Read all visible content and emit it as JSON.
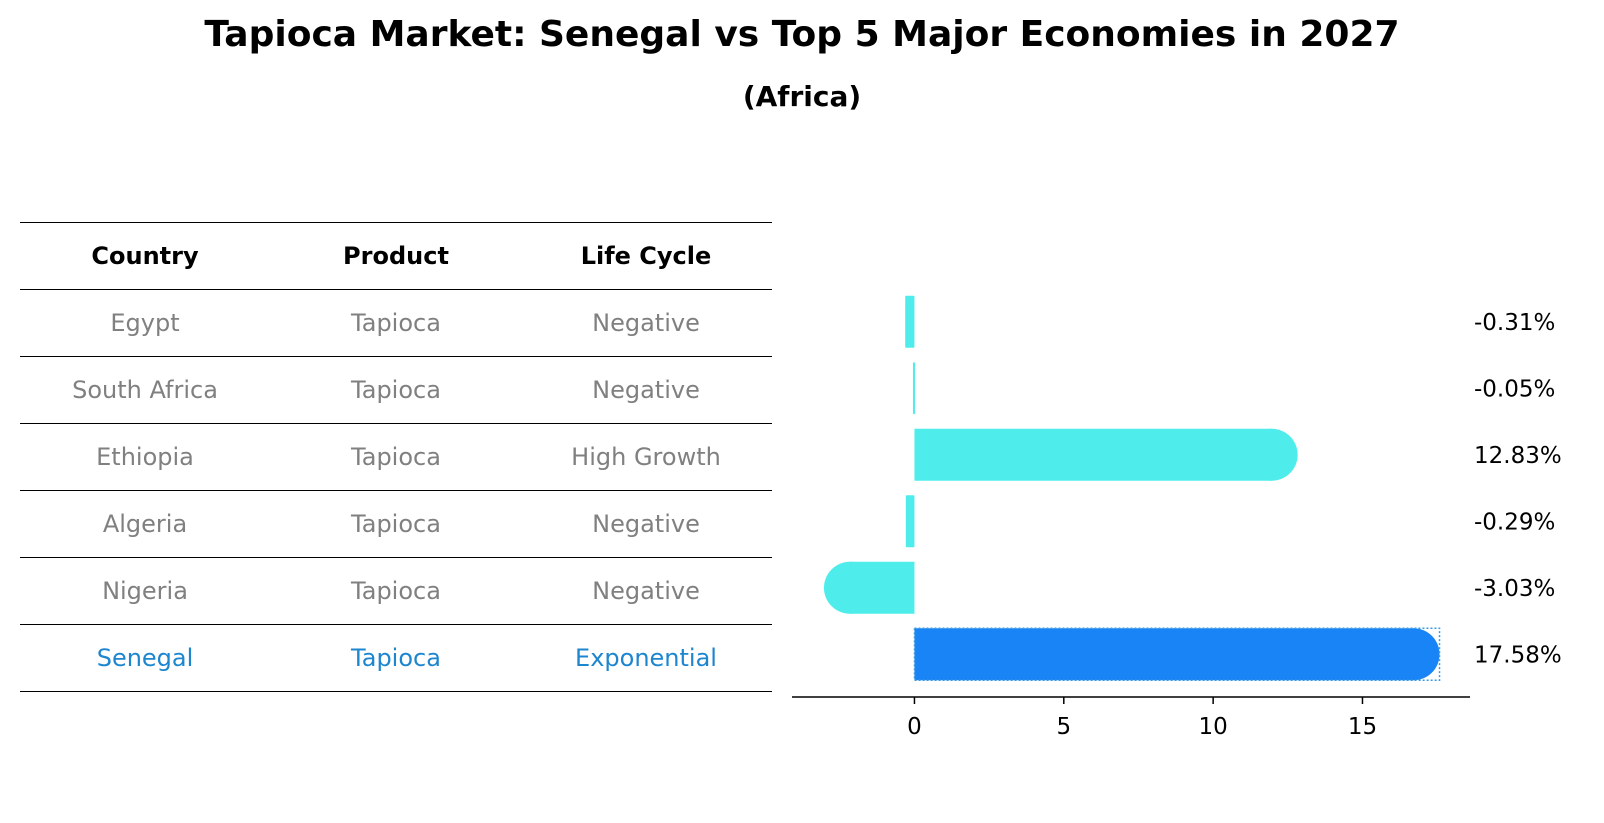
{
  "title": "Tapioca Market: Senegal vs Top 5 Major Economies in 2027",
  "subtitle": "(Africa)",
  "table": {
    "headers": [
      "Country",
      "Product",
      "Life Cycle"
    ],
    "rows": [
      [
        "Egypt",
        "Tapioca",
        "Negative"
      ],
      [
        "South Africa",
        "Tapioca",
        "Negative"
      ],
      [
        "Ethiopia",
        "Tapioca",
        "High Growth"
      ],
      [
        "Algeria",
        "Tapioca",
        "Negative"
      ],
      [
        "Nigeria",
        "Tapioca",
        "Negative"
      ],
      [
        "Senegal",
        "Tapioca",
        "Exponential"
      ]
    ],
    "highlight_row": 5
  },
  "chart_data": {
    "type": "bar",
    "orientation": "horizontal",
    "categories": [
      "Egypt",
      "South Africa",
      "Ethiopia",
      "Algeria",
      "Nigeria",
      "Senegal"
    ],
    "values": [
      -0.31,
      -0.05,
      12.83,
      -0.29,
      -3.03,
      17.58
    ],
    "value_labels": [
      "-0.31%",
      "-0.05%",
      "12.83%",
      "-0.29%",
      "-3.03%",
      "17.58%"
    ],
    "xticks": [
      0,
      5,
      10,
      15
    ],
    "xlim": [
      -4.1,
      18.6
    ],
    "colors": {
      "default": "#4EEDEB",
      "highlight": "#1984F5"
    },
    "highlight_index": 5,
    "grid": false
  }
}
